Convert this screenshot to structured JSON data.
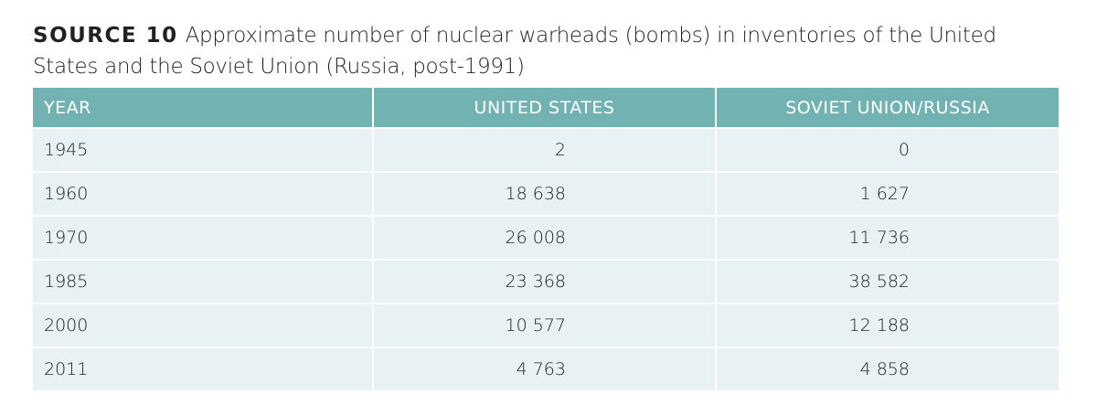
{
  "header": {
    "label": "SOURCE 10",
    "title": "Approximate number of nuclear warheads (bombs) in inventories of the United States and the Soviet Union (Russia, post-1991)"
  },
  "table": {
    "columns": [
      "YEAR",
      "UNITED STATES",
      "SOVIET UNION/RUSSIA"
    ],
    "rows": [
      [
        "1945",
        "2",
        "0"
      ],
      [
        "1960",
        "18 638",
        "1 627"
      ],
      [
        "1970",
        "26 008",
        "11 736"
      ],
      [
        "1985",
        "23 368",
        "38 582"
      ],
      [
        "2000",
        "10 577",
        "12 188"
      ],
      [
        "2011",
        "4 763",
        "4 858"
      ]
    ]
  }
}
